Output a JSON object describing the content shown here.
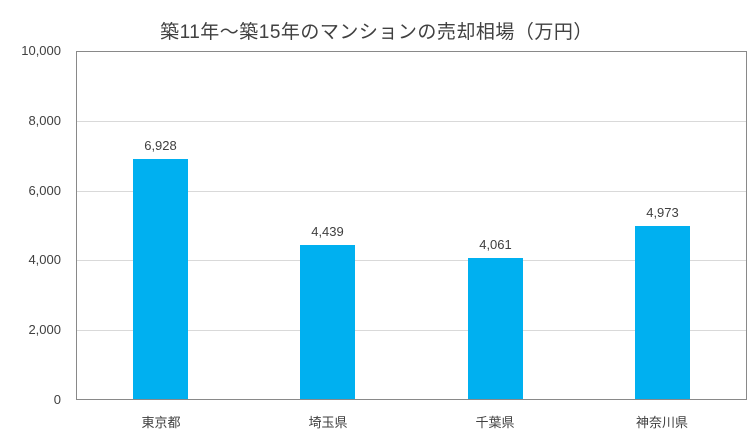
{
  "chart_data": {
    "type": "bar",
    "title": "築11年～築15年のマンションの売却相場（万円）",
    "categories": [
      "東京都",
      "埼玉県",
      "千葉県",
      "神奈川県"
    ],
    "values": [
      6928,
      4439,
      4061,
      4973
    ],
    "value_labels": [
      "6,928",
      "4,439",
      "4,061",
      "4,973"
    ],
    "xlabel": "",
    "ylabel": "",
    "ylim": [
      0,
      10000
    ],
    "ytick_interval": 2000,
    "ytick_labels": [
      "0",
      "2,000",
      "4,000",
      "6,000",
      "8,000",
      "10,000"
    ],
    "grid": "horizontal",
    "legend": "none",
    "colors": {
      "bar_fill": "#00b0f0",
      "text": "#404040",
      "gridline": "#d9d9d9",
      "plot_border": "#898989",
      "background": "#ffffff"
    }
  }
}
